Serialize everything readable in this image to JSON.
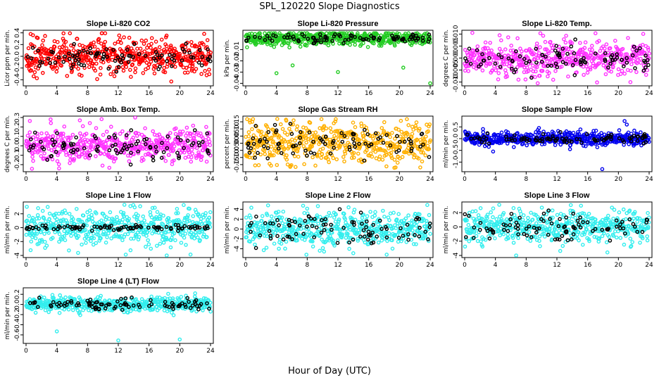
{
  "figure": {
    "title": "SPL_120220  Slope Diagnostics",
    "xlabel": "Hour of Day (UTC)"
  },
  "colors": {
    "red": "#ff0000",
    "green": "#22cc22",
    "magenta": "#ff33ff",
    "orange": "#ffb000",
    "blue": "#0000ee",
    "cyan": "#33eeee",
    "overlay": "#000000"
  },
  "chart_data": [
    {
      "type": "scatter",
      "title": "Slope Li-820 CO2",
      "ylabel": "Licor ppm per min.",
      "color": "red",
      "xlim": [
        0,
        24
      ],
      "xticks": [
        0,
        4,
        8,
        12,
        16,
        20,
        24
      ],
      "ylim": [
        -0.48,
        0.42
      ],
      "yticks": [
        -0.4,
        -0.2,
        0.0,
        0.2,
        0.4
      ],
      "ytick_labels": [
        "-0.4",
        "-0.2",
        "0.0",
        "0.2",
        "0.4"
      ],
      "spread": 0.15,
      "overlay_spread": 0.1,
      "outliers": [
        [
          0.6,
          0.38
        ],
        [
          0.9,
          0.36
        ],
        [
          1.4,
          0.32
        ],
        [
          11.5,
          -0.34
        ],
        [
          18.9,
          -0.43
        ],
        [
          21.6,
          -0.22
        ]
      ]
    },
    {
      "type": "scatter",
      "title": "Slope Li-820 Pressure",
      "ylabel": "kPa per min.",
      "color": "green",
      "xlim": [
        0,
        24
      ],
      "xticks": [
        0,
        4,
        8,
        12,
        16,
        20,
        24
      ],
      "ylim": [
        -0.041,
        0.006
      ],
      "yticks": [
        -0.04,
        -0.03,
        -0.02,
        -0.01
      ],
      "ytick_labels": [
        "-0.04",
        "-0.03",
        "-0.02",
        "-0.01"
      ],
      "spread": 0.003,
      "overlay_spread": 0.002,
      "outliers": [
        [
          4.0,
          -0.031
        ],
        [
          6.1,
          -0.024
        ],
        [
          12.0,
          -0.03
        ],
        [
          20.5,
          -0.026
        ],
        [
          24.0,
          -0.04
        ]
      ]
    },
    {
      "type": "scatter",
      "title": "Slope Li-820 Temp.",
      "ylabel": "degrees C per min.",
      "color": "magenta",
      "xlim": [
        0,
        24
      ],
      "xticks": [
        0,
        4,
        8,
        12,
        16,
        20,
        24
      ],
      "ylim": [
        -0.011,
        0.011
      ],
      "yticks": [
        -0.01,
        -0.005,
        0.0,
        0.005,
        0.01
      ],
      "ytick_labels": [
        "-0.010",
        "-0.005",
        "0.000",
        "0.005",
        "0.010"
      ],
      "spread": 0.0035,
      "overlay_spread": 0.0025,
      "outliers": [
        [
          1.0,
          0.0105
        ],
        [
          7.0,
          -0.009
        ],
        [
          9.5,
          -0.0105
        ]
      ]
    },
    {
      "type": "scatter",
      "title": "Slope Amb. Box Temp.",
      "ylabel": "degrees C per min.",
      "color": "magenta",
      "xlim": [
        0,
        24
      ],
      "xticks": [
        0,
        4,
        8,
        12,
        16,
        20,
        24
      ],
      "ylim": [
        -0.26,
        0.3
      ],
      "yticks": [
        -0.2,
        -0.1,
        0.0,
        0.1,
        0.2,
        0.3
      ],
      "ytick_labels": [
        "-0.2",
        "-0.1",
        "0.0",
        "0.1",
        "0.2",
        "0.3"
      ],
      "spread": 0.09,
      "overlay_spread": 0.07,
      "outliers": [
        [
          3.2,
          0.28
        ],
        [
          7.0,
          0.27
        ],
        [
          14.2,
          0.3
        ],
        [
          4.3,
          -0.24
        ]
      ]
    },
    {
      "type": "scatter",
      "title": "Slope Gas Stream RH",
      "ylabel": "percent per min.",
      "color": "orange",
      "xlim": [
        0,
        24
      ],
      "xticks": [
        0,
        4,
        8,
        12,
        16,
        20,
        24
      ],
      "ylim": [
        -0.19,
        0.18
      ],
      "yticks": [
        -0.15,
        -0.1,
        -0.05,
        0.0,
        0.05,
        0.1,
        0.15
      ],
      "ytick_labels": [
        "-0.15",
        "-0.10",
        "-0.05",
        "0.00",
        "0.05",
        "0.10",
        "0.15"
      ],
      "spread": 0.07,
      "overlay_spread": 0.05,
      "outliers": [
        [
          0.5,
          0.16
        ],
        [
          4.1,
          0.17
        ],
        [
          19.5,
          -0.17
        ]
      ]
    },
    {
      "type": "scatter",
      "title": "Slope Sample Flow",
      "ylabel": "ml/min per min.",
      "color": "blue",
      "xlim": [
        0,
        24
      ],
      "xticks": [
        0,
        4,
        8,
        12,
        16,
        20,
        24
      ],
      "ylim": [
        -1.35,
        0.9
      ],
      "yticks": [
        -1.0,
        -0.5,
        0.0,
        0.5
      ],
      "ytick_labels": [
        "-1.0",
        "-0.5",
        "0.0",
        "0.5"
      ],
      "spread": 0.14,
      "overlay_spread": 0.1,
      "outliers": [
        [
          17.9,
          -1.3
        ],
        [
          20.8,
          0.75
        ],
        [
          21.1,
          0.6
        ],
        [
          3.7,
          -0.55
        ],
        [
          13.7,
          -0.45
        ]
      ]
    },
    {
      "type": "scatter",
      "title": "Slope Line 1 Flow",
      "ylabel": "ml/min per min.",
      "color": "cyan",
      "xlim": [
        0,
        24
      ],
      "xticks": [
        0,
        4,
        8,
        12,
        16,
        20,
        24
      ],
      "ylim": [
        -4.1,
        3.5
      ],
      "yticks": [
        -4,
        -2,
        0,
        2
      ],
      "ytick_labels": [
        "-4",
        "-2",
        "0",
        "2"
      ],
      "spread": 1.3,
      "overlay_spread": 0.2,
      "outliers": [
        [
          12.8,
          3.3
        ],
        [
          18.3,
          -4.0
        ],
        [
          0.1,
          3.0
        ]
      ]
    },
    {
      "type": "scatter",
      "title": "Slope Line 2 Flow",
      "ylabel": "ml/min per min.",
      "color": "cyan",
      "xlim": [
        0,
        24
      ],
      "xticks": [
        0,
        4,
        8,
        12,
        16,
        20,
        24
      ],
      "ylim": [
        -5.5,
        5.2
      ],
      "yticks": [
        -4,
        -2,
        0,
        2,
        4
      ],
      "ytick_labels": [
        "-4",
        "-2",
        "0",
        "2",
        "4"
      ],
      "spread": 1.7,
      "overlay_spread": 1.6,
      "outliers": [
        [
          7.9,
          -5.2
        ],
        [
          2.9,
          4.8
        ],
        [
          14.0,
          -4.9
        ]
      ]
    },
    {
      "type": "scatter",
      "title": "Slope Line 3 Flow",
      "ylabel": "ml/min per min.",
      "color": "cyan",
      "xlim": [
        0,
        24
      ],
      "xticks": [
        0,
        4,
        8,
        12,
        16,
        20,
        24
      ],
      "ylim": [
        -4.1,
        3.3
      ],
      "yticks": [
        -4,
        -2,
        0,
        2
      ],
      "ytick_labels": [
        "-4",
        "-2",
        "0",
        "2"
      ],
      "spread": 1.1,
      "overlay_spread": 1.0,
      "outliers": [
        [
          4.5,
          3.1
        ],
        [
          6.7,
          -4.0
        ],
        [
          9.8,
          -2.7
        ]
      ]
    },
    {
      "type": "scatter",
      "title": "Slope Line 4 (LT) Flow",
      "ylabel": "ml/min per min.",
      "color": "cyan",
      "xlim": [
        0,
        24
      ],
      "xticks": [
        0,
        4,
        8,
        12,
        16,
        20,
        24
      ],
      "ylim": [
        -0.74,
        0.3
      ],
      "yticks": [
        -0.6,
        -0.4,
        -0.2,
        0.0,
        0.2
      ],
      "ytick_labels": [
        "-0.6",
        "-0.4",
        "-0.2",
        "0.0",
        "0.2"
      ],
      "spread": 0.07,
      "overlay_spread": 0.05,
      "outliers": [
        [
          4.0,
          -0.53
        ],
        [
          12.0,
          -0.71
        ],
        [
          20.0,
          -0.69
        ],
        [
          22.0,
          0.22
        ]
      ]
    }
  ]
}
